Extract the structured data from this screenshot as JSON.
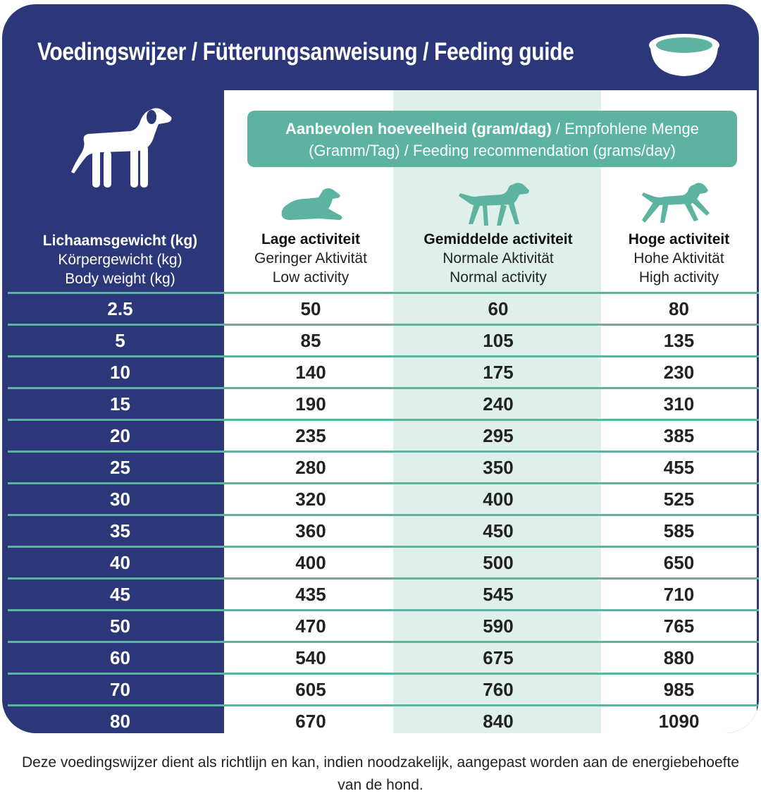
{
  "title": "Voedingswijzer / Fütterungsanweisung / Feeding guide",
  "icons": {
    "bowl": "food-bowl-icon",
    "main": "standing-dog-icon",
    "low": "lying-dog-icon",
    "normal": "walking-dog-icon",
    "high": "running-dog-icon"
  },
  "colors": {
    "navy": "#2c3779",
    "teal": "#5bb3a0",
    "mint": "#dff0ea",
    "white": "#ffffff"
  },
  "weight_header": {
    "nl": "Lichaamsgewicht (kg)",
    "de": "Körpergewicht (kg)",
    "en": "Body weight (kg)"
  },
  "recommendation": {
    "bold": "Aanbevolen hoeveelheid (gram/dag)",
    "rest1": " / Empfohlene Menge",
    "line2": "(Gramm/Tag) / Feeding recommendation (grams/day)"
  },
  "activities": [
    {
      "nl": "Lage activiteit",
      "de": "Geringer Aktivität",
      "en": "Low activity"
    },
    {
      "nl": "Gemiddelde activiteit",
      "de": "Normale Aktivität",
      "en": "Normal activity"
    },
    {
      "nl": "Hoge activiteit",
      "de": "Hohe Aktivität",
      "en": "High activity"
    }
  ],
  "rows": [
    [
      "2.5",
      "50",
      "60",
      "80"
    ],
    [
      "5",
      "85",
      "105",
      "135"
    ],
    [
      "10",
      "140",
      "175",
      "230"
    ],
    [
      "15",
      "190",
      "240",
      "310"
    ],
    [
      "20",
      "235",
      "295",
      "385"
    ],
    [
      "25",
      "280",
      "350",
      "455"
    ],
    [
      "30",
      "320",
      "400",
      "525"
    ],
    [
      "35",
      "360",
      "450",
      "585"
    ],
    [
      "40",
      "400",
      "500",
      "650"
    ],
    [
      "45",
      "435",
      "545",
      "710"
    ],
    [
      "50",
      "470",
      "590",
      "765"
    ],
    [
      "60",
      "540",
      "675",
      "880"
    ],
    [
      "70",
      "605",
      "760",
      "985"
    ],
    [
      "80",
      "670",
      "840",
      "1090"
    ]
  ],
  "footer": "Deze voedingswijzer dient als richtlijn en kan, indien noodzakelijk, aangepast worden aan de energiebehoefte van de hond."
}
